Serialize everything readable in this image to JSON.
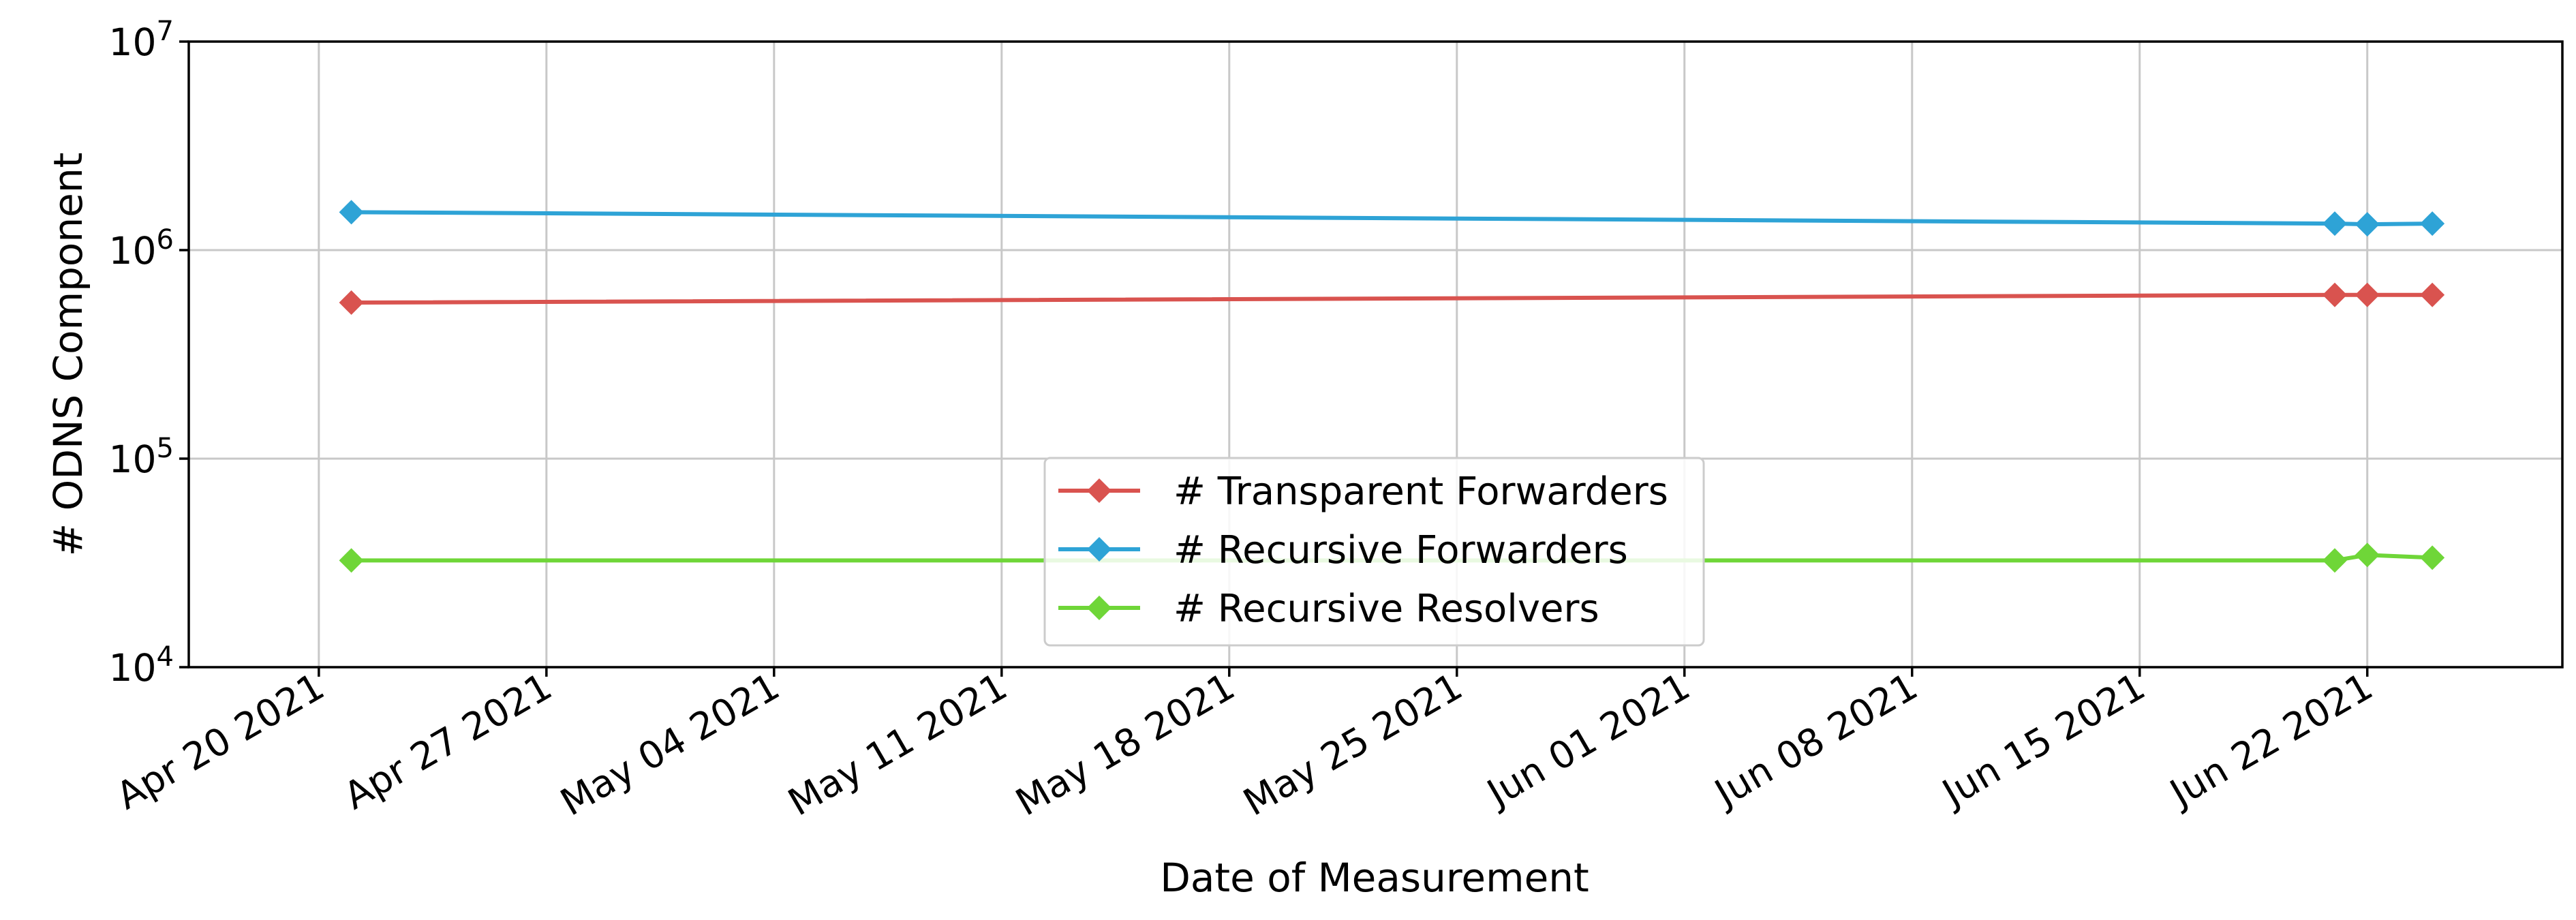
{
  "chart_data": {
    "type": "line",
    "xlabel": "Date of Measurement",
    "ylabel": "# ODNS Component",
    "yscale": "log",
    "ylim": [
      10000,
      10000000
    ],
    "xlim": [
      "2021-04-16",
      "2021-06-28"
    ],
    "grid": true,
    "legend_position": "lower-center",
    "x_ticks": [
      "2021-04-20",
      "2021-04-27",
      "2021-05-04",
      "2021-05-11",
      "2021-05-18",
      "2021-05-25",
      "2021-06-01",
      "2021-06-08",
      "2021-06-15",
      "2021-06-22"
    ],
    "x_tick_labels": [
      "Apr 20 2021",
      "Apr 27 2021",
      "May 04 2021",
      "May 11 2021",
      "May 18 2021",
      "May 25 2021",
      "Jun 01 2021",
      "Jun 08 2021",
      "Jun 15 2021",
      "Jun 22 2021"
    ],
    "y_ticks": [
      10000,
      100000,
      1000000,
      10000000
    ],
    "y_tick_exponents": [
      "4",
      "5",
      "6",
      "7"
    ],
    "y_tick_base": "10",
    "series": [
      {
        "name": "# Transparent Forwarders",
        "color": "#d9534f",
        "marker": "diamond",
        "x": [
          "2021-04-21",
          "2021-06-21",
          "2021-06-22",
          "2021-06-24"
        ],
        "y": [
          560000,
          610000,
          610000,
          610000
        ]
      },
      {
        "name": "# Recursive Forwarders",
        "color": "#2ea3d6",
        "marker": "diamond",
        "x": [
          "2021-04-21",
          "2021-06-21",
          "2021-06-22",
          "2021-06-24"
        ],
        "y": [
          1520000,
          1340000,
          1330000,
          1340000
        ]
      },
      {
        "name": "# Recursive Resolvers",
        "color": "#6fd638",
        "marker": "diamond",
        "x": [
          "2021-04-21",
          "2021-06-21",
          "2021-06-22",
          "2021-06-24"
        ],
        "y": [
          32500,
          32500,
          34500,
          33500
        ]
      }
    ]
  }
}
